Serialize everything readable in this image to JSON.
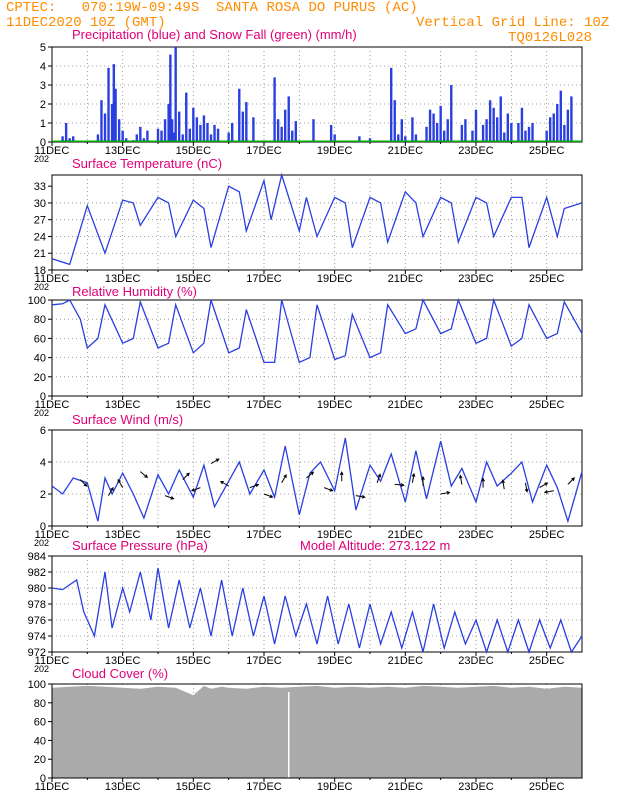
{
  "header": {
    "line1": "CPTEC:   070:19W-09:49S  SANTA ROSA DO PURUS (AC)",
    "line2": "11DEC2020 10Z (GMT)",
    "grid_note": "Vertical Grid Line: 10Z",
    "code": "TQ0126L028"
  },
  "colors": {
    "header": "#ff8c00",
    "title": "#e0007a",
    "series": "#2a3fe0",
    "snow": "#00aa00",
    "cloud": "#aaaaaa"
  },
  "x_tick_labels": [
    "11DEC",
    "13DEC",
    "15DEC",
    "17DEC",
    "19DEC",
    "21DEC",
    "23DEC",
    "25DEC"
  ],
  "year_stub": "202",
  "chart_data": [
    {
      "type": "bar",
      "title": "Precipitation (blue) and Snow Fall (green) (mm/h)",
      "ylim": [
        0,
        5
      ],
      "yticks": [
        "0",
        "1",
        "2",
        "3",
        "4",
        "5"
      ],
      "xlim_days": [
        0,
        15
      ],
      "series": [
        {
          "name": "Precipitation (blue)",
          "x": [
            0.3,
            0.4,
            0.5,
            0.6,
            1.3,
            1.4,
            1.5,
            1.6,
            1.7,
            1.75,
            1.8,
            1.9,
            2.0,
            2.1,
            2.3,
            2.4,
            2.5,
            2.6,
            2.7,
            3.0,
            3.1,
            3.2,
            3.3,
            3.35,
            3.4,
            3.45,
            3.5,
            3.6,
            3.7,
            3.8,
            3.9,
            4.0,
            4.1,
            4.2,
            4.3,
            4.4,
            4.5,
            4.6,
            4.7,
            5.0,
            5.1,
            5.3,
            5.4,
            5.5,
            5.7,
            6.3,
            6.4,
            6.5,
            6.6,
            6.7,
            6.8,
            6.9,
            7.4,
            7.9,
            8.0,
            8.7,
            9.0,
            9.6,
            9.7,
            9.8,
            9.9,
            10.0,
            10.2,
            10.3,
            10.6,
            10.7,
            10.8,
            10.9,
            11.0,
            11.1,
            11.2,
            11.3,
            11.6,
            11.7,
            11.9,
            12.0,
            12.2,
            12.3,
            12.4,
            12.5,
            12.6,
            12.7,
            12.8,
            12.9,
            13.0,
            13.2,
            13.3,
            13.4,
            13.5,
            13.6,
            14.0,
            14.1,
            14.2,
            14.3,
            14.4,
            14.5,
            14.6,
            14.7
          ],
          "values": [
            0.3,
            1.0,
            0.2,
            0.3,
            0.4,
            2.2,
            1.5,
            3.9,
            2.0,
            4.1,
            2.8,
            1.2,
            0.6,
            0.2,
            0.1,
            0.4,
            0.8,
            0.2,
            0.6,
            0.7,
            0.6,
            1.2,
            2.0,
            4.6,
            1.2,
            0.5,
            5.0,
            1.6,
            0.4,
            2.6,
            0.7,
            1.8,
            1.3,
            0.9,
            1.4,
            1.0,
            0.4,
            0.9,
            0.7,
            0.5,
            1.0,
            2.8,
            1.6,
            2.1,
            1.3,
            3.4,
            1.2,
            0.8,
            1.7,
            2.4,
            0.6,
            1.1,
            1.2,
            0.9,
            0.4,
            0.3,
            0.2,
            3.9,
            2.2,
            0.4,
            1.2,
            0.3,
            1.3,
            0.4,
            0.8,
            1.7,
            1.5,
            1.0,
            1.9,
            0.6,
            1.2,
            3.0,
            0.9,
            1.2,
            0.6,
            1.7,
            0.9,
            1.2,
            2.2,
            1.8,
            1.3,
            2.4,
            0.5,
            1.5,
            1.0,
            1.0,
            1.8,
            0.6,
            0.8,
            1.0,
            0.6,
            1.3,
            1.5,
            2.0,
            2.7,
            0.9,
            1.7,
            2.4
          ]
        },
        {
          "name": "Snow Fall (green)",
          "values": [
            0
          ]
        }
      ]
    },
    {
      "type": "line",
      "title": "Surface Temperature (nC)",
      "ylim": [
        18,
        35
      ],
      "yticks": [
        "18",
        "21",
        "24",
        "27",
        "30",
        "33"
      ],
      "x": [
        0,
        0.5,
        1,
        1.5,
        2,
        2.3,
        2.5,
        3,
        3.3,
        3.5,
        4,
        4.3,
        4.5,
        5,
        5.3,
        5.5,
        6,
        6.2,
        6.5,
        7,
        7.2,
        7.5,
        8,
        8.3,
        8.5,
        9,
        9.3,
        9.5,
        10,
        10.3,
        10.5,
        11,
        11.3,
        11.5,
        12,
        12.3,
        12.5,
        13,
        13.3,
        13.5,
        14,
        14.3,
        14.5,
        15
      ],
      "values": [
        20,
        19,
        29.5,
        21,
        30.5,
        30,
        26,
        31,
        30,
        24,
        30.5,
        29,
        22,
        33,
        32,
        25,
        34,
        27,
        35,
        25,
        31,
        24,
        31,
        30,
        22,
        31,
        30,
        23,
        32,
        30,
        24,
        31,
        30,
        23,
        31,
        30,
        24,
        31,
        31,
        22,
        31,
        24,
        29,
        30
      ]
    },
    {
      "type": "line",
      "title": "Relative Humidity (%)",
      "ylim": [
        0,
        100
      ],
      "yticks": [
        "0",
        "20",
        "40",
        "60",
        "80",
        "100"
      ],
      "x": [
        0,
        0.3,
        0.5,
        0.8,
        1,
        1.3,
        1.5,
        2,
        2.3,
        2.5,
        3,
        3.3,
        3.5,
        4,
        4.3,
        4.5,
        5,
        5.3,
        5.5,
        6,
        6.3,
        6.5,
        7,
        7.3,
        7.5,
        8,
        8.3,
        8.5,
        9,
        9.3,
        9.5,
        10,
        10.3,
        10.5,
        11,
        11.3,
        11.5,
        12,
        12.3,
        12.5,
        13,
        13.3,
        13.5,
        14,
        14.3,
        14.5,
        15
      ],
      "values": [
        95,
        96,
        100,
        80,
        50,
        60,
        95,
        55,
        60,
        98,
        50,
        55,
        95,
        45,
        55,
        100,
        45,
        50,
        90,
        35,
        35,
        100,
        35,
        40,
        95,
        38,
        42,
        85,
        40,
        45,
        95,
        65,
        70,
        100,
        65,
        70,
        100,
        55,
        60,
        100,
        52,
        60,
        95,
        60,
        65,
        98,
        65
      ]
    },
    {
      "type": "line",
      "title": "Surface Wind (m/s)",
      "ylim": [
        0,
        6
      ],
      "yticks": [
        "0",
        "2",
        "4",
        "6"
      ],
      "x": [
        0,
        0.3,
        0.6,
        1,
        1.3,
        1.5,
        1.7,
        2,
        2.3,
        2.6,
        3,
        3.3,
        3.6,
        4,
        4.3,
        4.6,
        5,
        5.3,
        5.6,
        6,
        6.3,
        6.6,
        7,
        7.3,
        7.6,
        8,
        8.3,
        8.6,
        9,
        9.3,
        9.6,
        10,
        10.3,
        10.6,
        11,
        11.3,
        11.6,
        12,
        12.3,
        12.6,
        13,
        13.3,
        13.6,
        14,
        14.3,
        14.6,
        15
      ],
      "values": [
        2.5,
        2.0,
        3.0,
        2.7,
        0.3,
        3.0,
        2.0,
        3.3,
        2.0,
        0.5,
        3.2,
        2.0,
        3.5,
        1.8,
        3.8,
        1.2,
        2.8,
        4.0,
        2.0,
        3.5,
        1.8,
        5.0,
        0.7,
        3.3,
        4.0,
        2.2,
        5.5,
        1.0,
        3.8,
        2.8,
        4.5,
        1.5,
        4.7,
        1.7,
        5.3,
        2.5,
        3.6,
        1.5,
        4.0,
        2.5,
        3.3,
        4.0,
        1.5,
        3.8,
        2.4,
        0.3,
        3.4
      ]
    },
    {
      "type": "line",
      "title": "Surface Pressure (hPa)",
      "annotation": "Model Altitude: 273.122  m",
      "ylim": [
        972,
        984
      ],
      "yticks": [
        "972",
        "974",
        "976",
        "978",
        "980",
        "982",
        "984"
      ],
      "x": [
        0,
        0.3,
        0.7,
        0.9,
        1.2,
        1.5,
        1.7,
        2.0,
        2.2,
        2.5,
        2.8,
        3.0,
        3.3,
        3.6,
        3.9,
        4.2,
        4.5,
        4.8,
        5.1,
        5.4,
        5.7,
        6.0,
        6.3,
        6.6,
        6.9,
        7.2,
        7.5,
        7.8,
        8.1,
        8.4,
        8.7,
        9.0,
        9.3,
        9.6,
        9.9,
        10.2,
        10.5,
        10.8,
        11.1,
        11.4,
        11.7,
        12.0,
        12.3,
        12.6,
        12.9,
        13.2,
        13.5,
        13.8,
        14.1,
        14.4,
        14.7,
        15
      ],
      "values": [
        980,
        979.8,
        981,
        977,
        974,
        982,
        975,
        980,
        977,
        982,
        976,
        982.5,
        975,
        981,
        975,
        980,
        974,
        981,
        974,
        980,
        974,
        979,
        973,
        979,
        974,
        978,
        973,
        979,
        973,
        978,
        972.5,
        978,
        973,
        977,
        972.5,
        977,
        972,
        978,
        972.5,
        977,
        973,
        976,
        972,
        976,
        972,
        976,
        972,
        976,
        972.5,
        976,
        972,
        974
      ]
    },
    {
      "type": "area",
      "title": "Cloud Cover (%)",
      "ylim": [
        0,
        100
      ],
      "yticks": [
        "0",
        "20",
        "40",
        "60",
        "80",
        "100"
      ],
      "x": [
        0,
        0.5,
        1,
        1.5,
        2,
        2.5,
        3,
        3.5,
        4,
        4.3,
        4.5,
        4.8,
        5,
        5.5,
        6,
        6.5,
        7,
        7.5,
        8,
        8.5,
        9,
        9.5,
        10,
        10.5,
        11,
        11.5,
        12,
        12.5,
        13,
        13.5,
        14,
        14.5,
        15
      ],
      "values": [
        96,
        97,
        98,
        97,
        96,
        95,
        97,
        96,
        88,
        98,
        95,
        97,
        96,
        95,
        97,
        96,
        97,
        98,
        96,
        97,
        96,
        97,
        96,
        98,
        97,
        96,
        97,
        98,
        96,
        97,
        95,
        97,
        96
      ]
    }
  ]
}
